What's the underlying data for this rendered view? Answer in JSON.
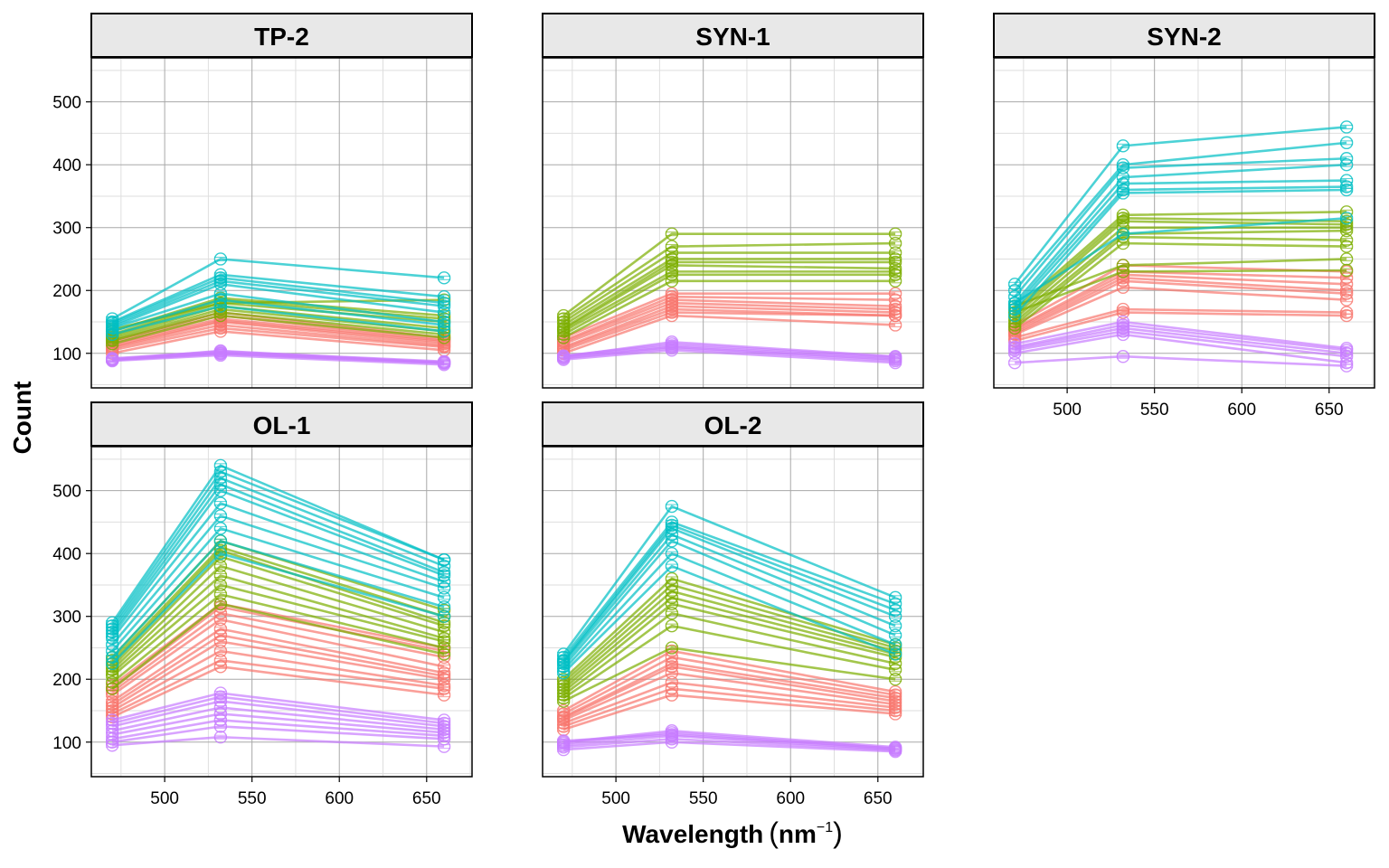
{
  "chart_data": {
    "type": "line",
    "xlabel": "Wavelength",
    "xlabel_unit_base": "nm",
    "xlabel_unit_exp": "−1",
    "ylabel": "Count",
    "xlim": [
      458,
      676
    ],
    "ylim": [
      45,
      570
    ],
    "x_ticks": [
      500,
      550,
      600,
      650
    ],
    "y_ticks": [
      100,
      200,
      300,
      400,
      500
    ],
    "x": [
      470,
      532,
      660
    ],
    "grid": true,
    "legend": "none",
    "group_colors": {
      "red": "#f8766d",
      "green": "#7cae00",
      "cyan": "#00bfc4",
      "purple": "#c77cff"
    },
    "panels": [
      {
        "label": "TP-2",
        "groups": {
          "red": [
            [
              100,
              135,
              105
            ],
            [
              105,
              140,
              110
            ],
            [
              108,
              145,
              112
            ],
            [
              110,
              150,
              115
            ],
            [
              112,
              152,
              118
            ],
            [
              115,
              155,
              120
            ],
            [
              118,
              160,
              122
            ],
            [
              120,
              165,
              125
            ]
          ],
          "green": [
            [
              115,
              160,
              125
            ],
            [
              120,
              165,
              130
            ],
            [
              122,
              170,
              135
            ],
            [
              125,
              175,
              140
            ],
            [
              128,
              180,
              150
            ],
            [
              130,
              185,
              155
            ],
            [
              135,
              188,
              160
            ],
            [
              138,
              180,
              185
            ]
          ],
          "cyan": [
            [
              130,
              175,
              135
            ],
            [
              135,
              185,
              145
            ],
            [
              140,
              195,
              150
            ],
            [
              142,
              210,
              165
            ],
            [
              145,
              215,
              175
            ],
            [
              148,
              220,
              180
            ],
            [
              150,
              225,
              190
            ],
            [
              155,
              250,
              220
            ]
          ],
          "purple": [
            [
              88,
              97,
              82
            ],
            [
              89,
              99,
              84
            ],
            [
              90,
              100,
              85
            ],
            [
              91,
              101,
              86
            ],
            [
              92,
              103,
              87
            ],
            [
              90,
              104,
              85
            ]
          ]
        }
      },
      {
        "label": "SYN-1",
        "groups": {
          "red": [
            [
              100,
              160,
              145
            ],
            [
              105,
              165,
              160
            ],
            [
              108,
              170,
              160
            ],
            [
              110,
              175,
              165
            ],
            [
              115,
              180,
              170
            ],
            [
              118,
              185,
              175
            ],
            [
              120,
              190,
              185
            ],
            [
              125,
              195,
              195
            ]
          ],
          "green": [
            [
              125,
              215,
              215
            ],
            [
              130,
              225,
              225
            ],
            [
              135,
              230,
              230
            ],
            [
              138,
              240,
              235
            ],
            [
              140,
              245,
              245
            ],
            [
              145,
              250,
              250
            ],
            [
              150,
              260,
              260
            ],
            [
              155,
              270,
              275
            ],
            [
              160,
              290,
              290
            ]
          ],
          "purple": [
            [
              90,
              105,
              85
            ],
            [
              92,
              108,
              88
            ],
            [
              93,
              110,
              90
            ],
            [
              95,
              112,
              92
            ],
            [
              96,
              115,
              94
            ],
            [
              95,
              118,
              95
            ]
          ]
        }
      },
      {
        "label": "SYN-2",
        "groups": {
          "red": [
            [
              120,
              165,
              160
            ],
            [
              125,
              170,
              165
            ],
            [
              130,
              205,
              185
            ],
            [
              132,
              215,
              195
            ],
            [
              135,
              220,
              200
            ],
            [
              138,
              225,
              210
            ],
            [
              140,
              230,
              220
            ],
            [
              145,
              240,
              230
            ]
          ],
          "green": [
            [
              140,
              275,
              270
            ],
            [
              145,
              285,
              280
            ],
            [
              150,
              290,
              295
            ],
            [
              155,
              300,
              300
            ],
            [
              160,
              310,
              305
            ],
            [
              165,
              315,
              310
            ],
            [
              170,
              320,
              325
            ],
            [
              175,
              240,
              250
            ],
            [
              165,
              230,
              232
            ]
          ],
          "cyan": [
            [
              160,
              355,
              360
            ],
            [
              170,
              360,
              365
            ],
            [
              175,
              370,
              375
            ],
            [
              180,
              380,
              400
            ],
            [
              190,
              395,
              410
            ],
            [
              200,
              400,
              435
            ],
            [
              210,
              430,
              460
            ],
            [
              180,
              290,
              315
            ]
          ],
          "purple": [
            [
              85,
              95,
              80
            ],
            [
              100,
              130,
              85
            ],
            [
              105,
              135,
              95
            ],
            [
              108,
              140,
              100
            ],
            [
              110,
              145,
              105
            ],
            [
              115,
              150,
              108
            ]
          ]
        }
      },
      {
        "label": "OL-1",
        "groups": {
          "red": [
            [
              140,
              220,
              175
            ],
            [
              145,
              230,
              185
            ],
            [
              150,
              245,
              190
            ],
            [
              155,
              260,
              200
            ],
            [
              160,
              270,
              205
            ],
            [
              165,
              280,
              210
            ],
            [
              175,
              295,
              220
            ],
            [
              180,
              305,
              235
            ],
            [
              185,
              315,
              245
            ],
            [
              190,
              320,
              250
            ]
          ],
          "green": [
            [
              185,
              320,
              240
            ],
            [
              195,
              335,
              250
            ],
            [
              205,
              350,
              260
            ],
            [
              210,
              365,
              265
            ],
            [
              215,
              380,
              275
            ],
            [
              220,
              395,
              285
            ],
            [
              225,
              405,
              290
            ],
            [
              230,
              410,
              300
            ],
            [
              235,
              420,
              310
            ]
          ],
          "cyan": [
            [
              225,
              400,
              300
            ],
            [
              235,
              420,
              315
            ],
            [
              245,
              440,
              330
            ],
            [
              255,
              460,
              345
            ],
            [
              265,
              480,
              355
            ],
            [
              270,
              500,
              365
            ],
            [
              275,
              510,
              370
            ],
            [
              280,
              520,
              380
            ],
            [
              285,
              530,
              390
            ],
            [
              290,
              540,
              390
            ]
          ],
          "purple": [
            [
              95,
              108,
              93
            ],
            [
              100,
              125,
              105
            ],
            [
              105,
              135,
              110
            ],
            [
              112,
              145,
              115
            ],
            [
              118,
              155,
              120
            ],
            [
              125,
              165,
              125
            ],
            [
              130,
              172,
              130
            ],
            [
              135,
              178,
              135
            ]
          ]
        }
      },
      {
        "label": "OL-2",
        "groups": {
          "red": [
            [
              120,
              175,
              145
            ],
            [
              125,
              185,
              150
            ],
            [
              130,
              195,
              155
            ],
            [
              135,
              210,
              160
            ],
            [
              138,
              220,
              165
            ],
            [
              140,
              225,
              170
            ],
            [
              145,
              235,
              175
            ],
            [
              150,
              245,
              180
            ]
          ],
          "green": [
            [
              165,
              250,
              200
            ],
            [
              170,
              285,
              215
            ],
            [
              175,
              305,
              225
            ],
            [
              180,
              320,
              235
            ],
            [
              185,
              330,
              240
            ],
            [
              190,
              340,
              245
            ],
            [
              195,
              350,
              250
            ],
            [
              200,
              360,
              255
            ]
          ],
          "cyan": [
            [
              210,
              380,
              240
            ],
            [
              215,
              400,
              255
            ],
            [
              220,
              420,
              270
            ],
            [
              225,
              430,
              285
            ],
            [
              228,
              440,
              300
            ],
            [
              230,
              445,
              310
            ],
            [
              235,
              450,
              320
            ],
            [
              240,
              475,
              330
            ]
          ],
          "purple": [
            [
              88,
              100,
              85
            ],
            [
              92,
              105,
              87
            ],
            [
              95,
              110,
              88
            ],
            [
              98,
              115,
              90
            ],
            [
              100,
              118,
              92
            ],
            [
              102,
              112,
              90
            ]
          ]
        }
      }
    ]
  }
}
